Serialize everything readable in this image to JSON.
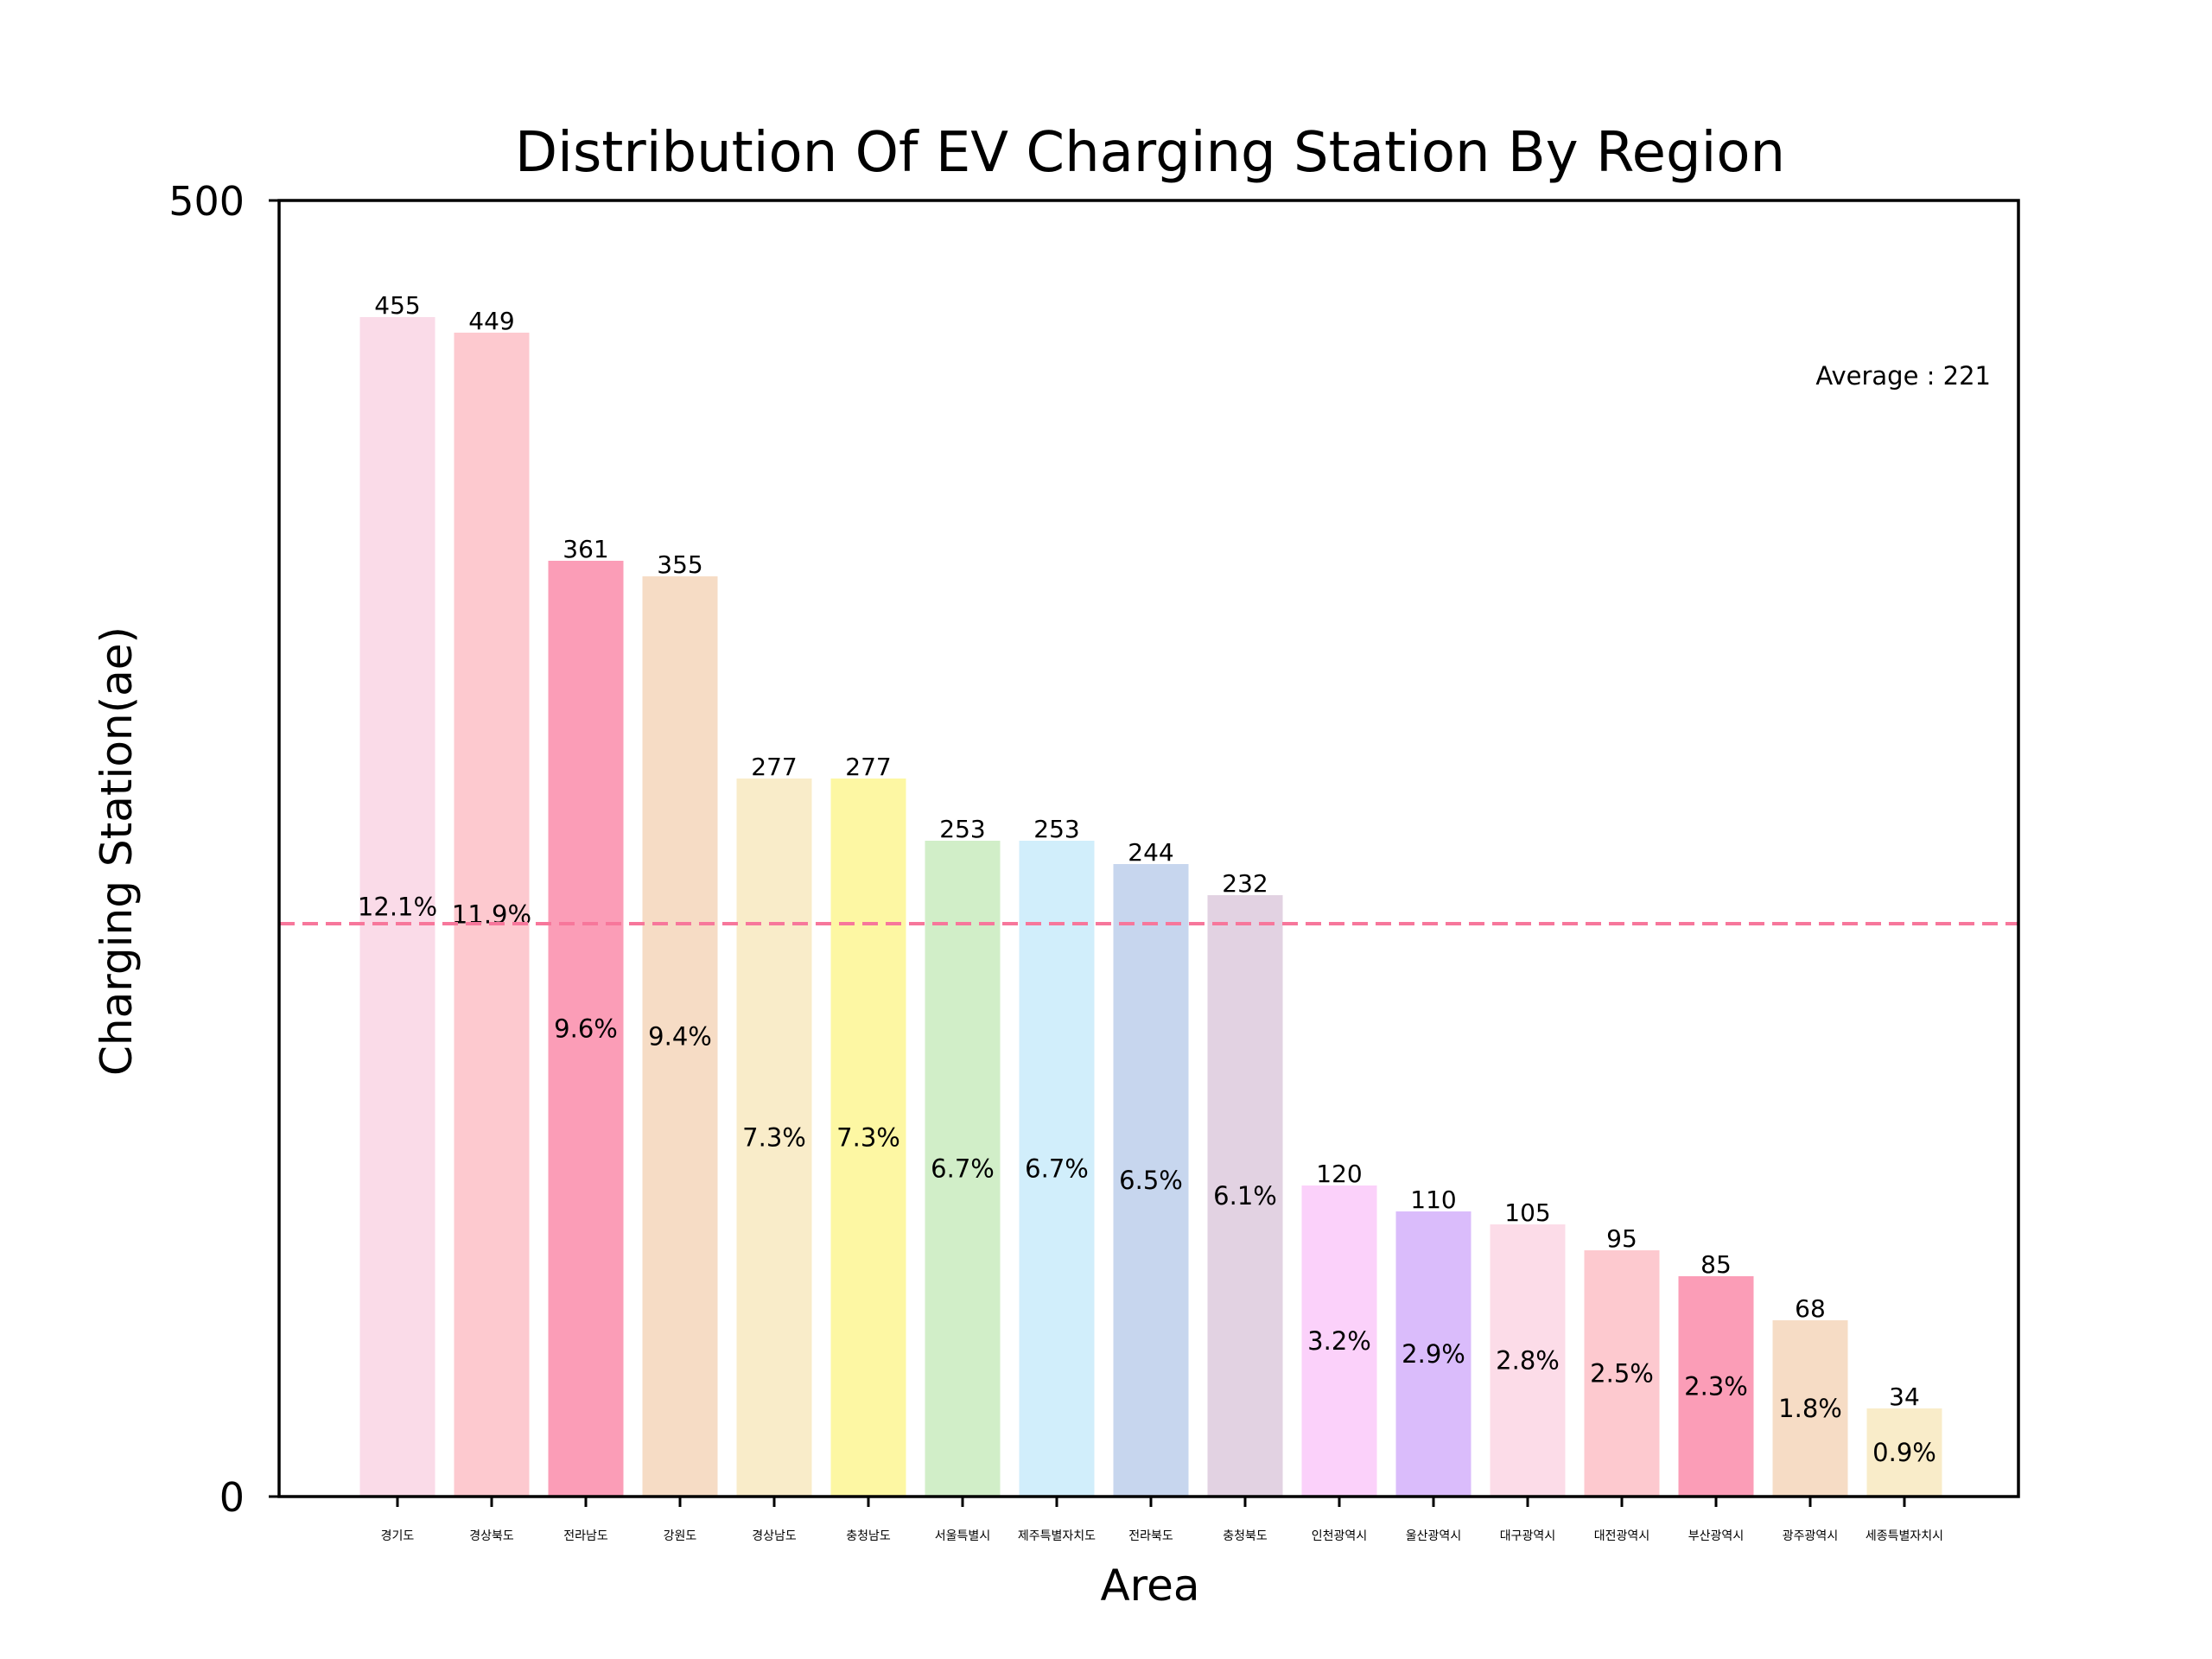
{
  "chart_data": {
    "type": "bar",
    "title": "Distribution Of EV Charging Station By Region",
    "xlabel": "Area",
    "ylabel": "Charging Station(ae)",
    "ylim": [
      0,
      500
    ],
    "yticks": [
      "0",
      "500"
    ],
    "grid": false,
    "categories": [
      "경기도",
      "경상북도",
      "전라남도",
      "강원도",
      "경상남도",
      "충청남도",
      "서울특별시",
      "제주특별자치도",
      "전라북도",
      "충청북도",
      "인천광역시",
      "울산광역시",
      "대구광역시",
      "대전광역시",
      "부산광역시",
      "광주광역시",
      "세종특별자치시"
    ],
    "values": [
      455,
      449,
      361,
      355,
      277,
      277,
      253,
      253,
      244,
      232,
      120,
      110,
      105,
      95,
      85,
      68,
      34
    ],
    "value_labels": [
      "455",
      "449",
      "361",
      "355",
      "277",
      "277",
      "253",
      "253",
      "244",
      "232",
      "120",
      "110",
      "105",
      "95",
      "85",
      "68",
      "34"
    ],
    "percent_labels": [
      "12.1%",
      "11.9%",
      "9.6%",
      "9.4%",
      "7.3%",
      "7.3%",
      "6.7%",
      "6.7%",
      "6.5%",
      "6.1%",
      "3.2%",
      "2.9%",
      "2.8%",
      "2.5%",
      "2.3%",
      "1.8%",
      "0.9%"
    ],
    "colors": [
      "#fadbe8",
      "#fdc9cf",
      "#fb9db7",
      "#f6dcc5",
      "#f9ecc9",
      "#fdf7a3",
      "#d1eec8",
      "#d1eefb",
      "#c7d6ee",
      "#e2d2e2",
      "#fbd1fa",
      "#dabcfb",
      "#fcdce8",
      "#fdc9cf",
      "#fb9db7",
      "#f6dcc5",
      "#f9ecc9"
    ],
    "average": 221,
    "average_label": "Average : 221",
    "average_line_color": "#f7779b"
  }
}
